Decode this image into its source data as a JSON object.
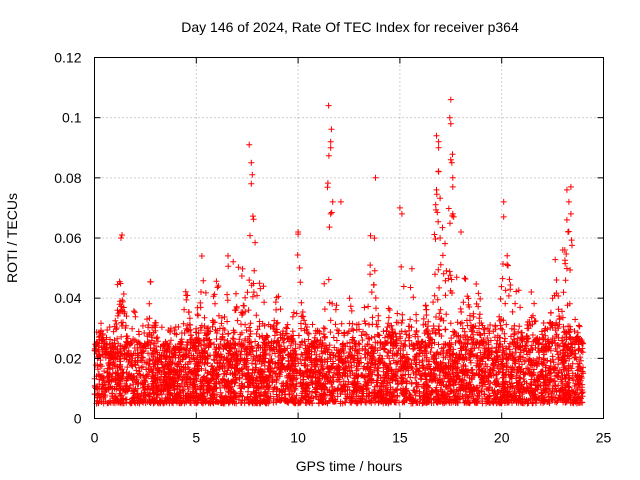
{
  "chart_data": {
    "type": "scatter",
    "title": "Day 146 of 2024, Rate Of TEC Index for receiver p364",
    "xlabel": "GPS time / hours",
    "ylabel": "ROTI / TECUs",
    "xlim": [
      0,
      25
    ],
    "ylim": [
      0,
      0.12
    ],
    "xticks": [
      0,
      5,
      10,
      15,
      20,
      25
    ],
    "xtick_labels": [
      "0",
      "5",
      "10",
      "15",
      "20",
      "25"
    ],
    "yticks": [
      0,
      0.02,
      0.04,
      0.06,
      0.08,
      0.1,
      0.12
    ],
    "ytick_labels": [
      "0",
      "0.02",
      "0.04",
      "0.06",
      "0.08",
      "0.1",
      "0.12"
    ],
    "grid": true,
    "marker": "+",
    "color": "#ff0000",
    "x_data_range": [
      0,
      24
    ],
    "typical_band": [
      0.005,
      0.025
    ],
    "notable_points": [
      {
        "x": 1.3,
        "y": 0.06
      },
      {
        "x": 1.35,
        "y": 0.061
      },
      {
        "x": 7.6,
        "y": 0.091
      },
      {
        "x": 7.7,
        "y": 0.085
      },
      {
        "x": 7.75,
        "y": 0.081
      },
      {
        "x": 7.7,
        "y": 0.078
      },
      {
        "x": 10.0,
        "y": 0.062
      },
      {
        "x": 11.5,
        "y": 0.104
      },
      {
        "x": 11.6,
        "y": 0.092
      },
      {
        "x": 11.6,
        "y": 0.09
      },
      {
        "x": 11.7,
        "y": 0.072
      },
      {
        "x": 11.6,
        "y": 0.068
      },
      {
        "x": 12.1,
        "y": 0.072
      },
      {
        "x": 13.8,
        "y": 0.08
      },
      {
        "x": 15.0,
        "y": 0.07
      },
      {
        "x": 15.1,
        "y": 0.068
      },
      {
        "x": 16.8,
        "y": 0.094
      },
      {
        "x": 16.9,
        "y": 0.092
      },
      {
        "x": 16.9,
        "y": 0.09
      },
      {
        "x": 16.9,
        "y": 0.082
      },
      {
        "x": 16.8,
        "y": 0.076
      },
      {
        "x": 17.5,
        "y": 0.106
      },
      {
        "x": 17.45,
        "y": 0.1
      },
      {
        "x": 17.5,
        "y": 0.098
      },
      {
        "x": 17.5,
        "y": 0.086
      },
      {
        "x": 17.55,
        "y": 0.085
      },
      {
        "x": 17.6,
        "y": 0.08
      },
      {
        "x": 17.6,
        "y": 0.077
      },
      {
        "x": 17.6,
        "y": 0.068
      },
      {
        "x": 18.0,
        "y": 0.062
      },
      {
        "x": 20.1,
        "y": 0.072
      },
      {
        "x": 20.1,
        "y": 0.067
      },
      {
        "x": 23.2,
        "y": 0.076
      },
      {
        "x": 23.4,
        "y": 0.077
      },
      {
        "x": 23.3,
        "y": 0.072
      },
      {
        "x": 23.4,
        "y": 0.068
      },
      {
        "x": 23.2,
        "y": 0.066
      },
      {
        "x": 23.0,
        "y": 0.056
      },
      {
        "x": 23.1,
        "y": 0.056
      }
    ],
    "activity_peaks": [
      {
        "x": 0.3,
        "peak": 0.036
      },
      {
        "x": 1.3,
        "peak": 0.061
      },
      {
        "x": 2.0,
        "peak": 0.04
      },
      {
        "x": 2.8,
        "peak": 0.051
      },
      {
        "x": 4.5,
        "peak": 0.048
      },
      {
        "x": 5.3,
        "peak": 0.06
      },
      {
        "x": 6.0,
        "peak": 0.06
      },
      {
        "x": 6.7,
        "peak": 0.072
      },
      {
        "x": 7.2,
        "peak": 0.066
      },
      {
        "x": 7.7,
        "peak": 0.091
      },
      {
        "x": 8.2,
        "peak": 0.055
      },
      {
        "x": 9.0,
        "peak": 0.048
      },
      {
        "x": 10.0,
        "peak": 0.062
      },
      {
        "x": 11.0,
        "peak": 0.04
      },
      {
        "x": 11.6,
        "peak": 0.104
      },
      {
        "x": 12.5,
        "peak": 0.046
      },
      {
        "x": 13.6,
        "peak": 0.08
      },
      {
        "x": 14.5,
        "peak": 0.04
      },
      {
        "x": 15.1,
        "peak": 0.07
      },
      {
        "x": 15.6,
        "peak": 0.058
      },
      {
        "x": 16.3,
        "peak": 0.042
      },
      {
        "x": 16.9,
        "peak": 0.094
      },
      {
        "x": 17.5,
        "peak": 0.106
      },
      {
        "x": 18.2,
        "peak": 0.058
      },
      {
        "x": 18.8,
        "peak": 0.052
      },
      {
        "x": 20.2,
        "peak": 0.072
      },
      {
        "x": 20.7,
        "peak": 0.057
      },
      {
        "x": 21.5,
        "peak": 0.05
      },
      {
        "x": 22.6,
        "peak": 0.056
      },
      {
        "x": 23.3,
        "peak": 0.077
      },
      {
        "x": 23.8,
        "peak": 0.034
      }
    ]
  }
}
